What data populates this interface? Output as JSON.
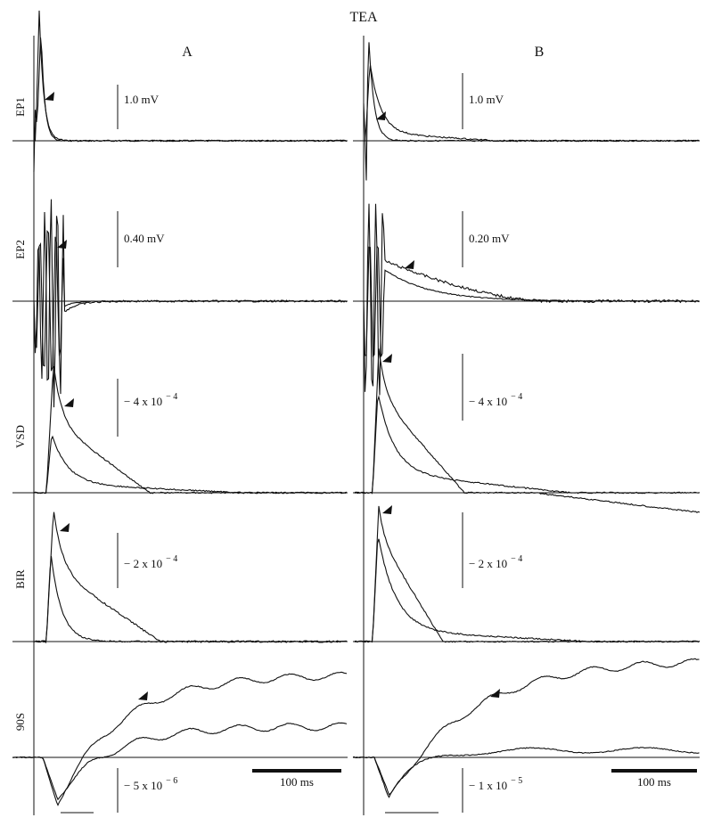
{
  "title": "TEA",
  "columns": [
    "A",
    "B"
  ],
  "rows": [
    "EP1",
    "EP2",
    "VSD",
    "BIR",
    "90S"
  ],
  "scale_bars": {
    "A": [
      {
        "text": "1.0 mV"
      },
      {
        "text": "0.40 mV"
      },
      {
        "text": "− 4 x 10",
        "exponent": "− 4"
      },
      {
        "text": "− 2 x 10",
        "exponent": "− 4"
      },
      {
        "text": "− 5 x 10",
        "exponent": "− 6"
      }
    ],
    "B": [
      {
        "text": "1.0 mV"
      },
      {
        "text": "0.20 mV"
      },
      {
        "text": "− 4 x 10",
        "exponent": "− 4"
      },
      {
        "text": "− 2 x 10",
        "exponent": "− 4"
      },
      {
        "text": "− 1 x 10",
        "exponent": "− 5"
      }
    ]
  },
  "time_bar": [
    "100 ms",
    "100 ms"
  ]
}
